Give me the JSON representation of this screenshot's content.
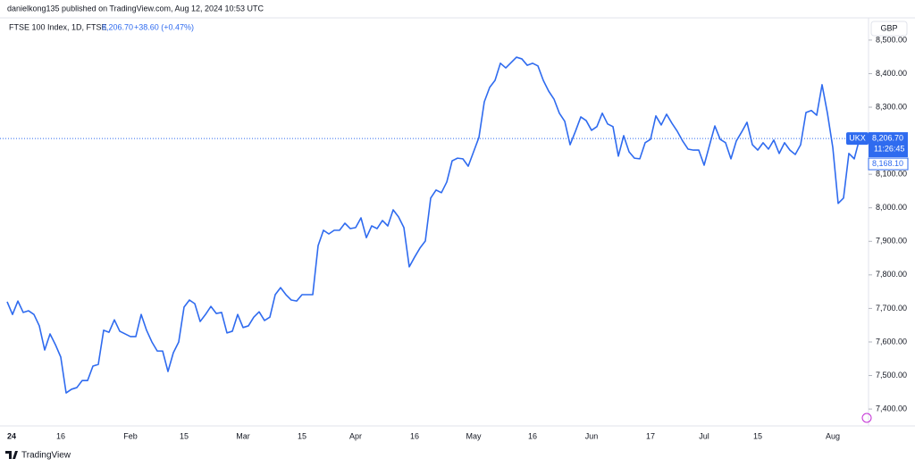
{
  "header": {
    "publisher": "danielkong135 published on TradingView.com, Aug 12, 2024 10:53 UTC"
  },
  "footer": {
    "brand": "TradingView"
  },
  "chart_data": {
    "type": "line",
    "title": "FTSE 100 Index, 1D, FTSE",
    "last": {
      "value": 8206.7,
      "label": "8,206.70"
    },
    "change": "+38.60 (+0.47%)",
    "currency": "GBP",
    "symbol": "UKX",
    "countdown": "11:26:45",
    "prev_close": {
      "value": 8168.1,
      "label": "8,168.10"
    },
    "color": "#2f6bef",
    "categories": [
      "24",
      null,
      null,
      null,
      null,
      null,
      null,
      null,
      null,
      null,
      "16",
      null,
      null,
      null,
      null,
      null,
      null,
      null,
      null,
      null,
      null,
      null,
      null,
      "Feb",
      null,
      null,
      null,
      null,
      null,
      null,
      null,
      null,
      null,
      "15",
      null,
      null,
      null,
      null,
      null,
      null,
      null,
      null,
      null,
      null,
      "Mar",
      null,
      null,
      null,
      null,
      null,
      null,
      null,
      null,
      null,
      null,
      "15",
      null,
      null,
      null,
      null,
      null,
      null,
      null,
      null,
      null,
      "Apr",
      null,
      null,
      null,
      null,
      null,
      null,
      null,
      null,
      null,
      null,
      "16",
      null,
      null,
      null,
      null,
      null,
      null,
      null,
      null,
      null,
      null,
      "May",
      null,
      null,
      null,
      null,
      null,
      null,
      null,
      null,
      null,
      null,
      "16",
      null,
      null,
      null,
      null,
      null,
      null,
      null,
      null,
      null,
      null,
      "Jun",
      null,
      null,
      null,
      null,
      null,
      null,
      null,
      null,
      null,
      null,
      "17",
      null,
      null,
      null,
      null,
      null,
      null,
      null,
      null,
      null,
      "Jul",
      null,
      null,
      null,
      null,
      null,
      null,
      null,
      null,
      null,
      "15",
      null,
      null,
      null,
      null,
      null,
      null,
      null,
      null,
      null,
      null,
      null,
      null,
      null,
      "Aug",
      null,
      null,
      null,
      null,
      null
    ],
    "values": [
      7720,
      7682,
      7722,
      7688,
      7693,
      7682,
      7648,
      7576,
      7624,
      7592,
      7555,
      7448,
      7459,
      7464,
      7485,
      7485,
      7528,
      7533,
      7635,
      7629,
      7666,
      7632,
      7624,
      7616,
      7616,
      7682,
      7635,
      7600,
      7573,
      7573,
      7512,
      7568,
      7600,
      7704,
      7725,
      7714,
      7661,
      7682,
      7706,
      7685,
      7688,
      7627,
      7632,
      7682,
      7643,
      7648,
      7674,
      7690,
      7664,
      7674,
      7741,
      7762,
      7741,
      7725,
      7722,
      7741,
      7741,
      7741,
      7887,
      7933,
      7922,
      7933,
      7933,
      7954,
      7938,
      7941,
      7970,
      7911,
      7946,
      7938,
      7962,
      7946,
      7994,
      7973,
      7941,
      7824,
      7853,
      7880,
      7901,
      8029,
      8053,
      8045,
      8077,
      8140,
      8148,
      8146,
      8124,
      8167,
      8210,
      8316,
      8359,
      8380,
      8431,
      8417,
      8433,
      8449,
      8444,
      8425,
      8431,
      8423,
      8380,
      8348,
      8324,
      8282,
      8258,
      8188,
      8228,
      8271,
      8260,
      8231,
      8242,
      8282,
      8250,
      8242,
      8154,
      8215,
      8167,
      8148,
      8146,
      8194,
      8204,
      8274,
      8247,
      8279,
      8252,
      8228,
      8199,
      8175,
      8172,
      8172,
      8127,
      8186,
      8244,
      8204,
      8194,
      8146,
      8199,
      8226,
      8255,
      8188,
      8172,
      8194,
      8175,
      8202,
      8162,
      8194,
      8172,
      8159,
      8188,
      8284,
      8290,
      8276,
      8367,
      8282,
      8180,
      8013,
      8029,
      8162,
      8146,
      8206.7
    ],
    "ylim": [
      7355,
      8545
    ],
    "yticks": [
      {
        "value": 7400,
        "label": "7,400.00"
      },
      {
        "value": 7500,
        "label": "7,500.00"
      },
      {
        "value": 7600,
        "label": "7,600.00"
      },
      {
        "value": 7700,
        "label": "7,700.00"
      },
      {
        "value": 7800,
        "label": "7,800.00"
      },
      {
        "value": 7900,
        "label": "7,900.00"
      },
      {
        "value": 8000,
        "label": "8,000.00"
      },
      {
        "value": 8100,
        "label": "8,100.00"
      },
      {
        "value": 8200,
        "label": "8,200.00"
      },
      {
        "value": 8300,
        "label": "8,300.00"
      },
      {
        "value": 8400,
        "label": "8,400.00"
      },
      {
        "value": 8500,
        "label": "8,500.00"
      }
    ],
    "grid": false
  }
}
